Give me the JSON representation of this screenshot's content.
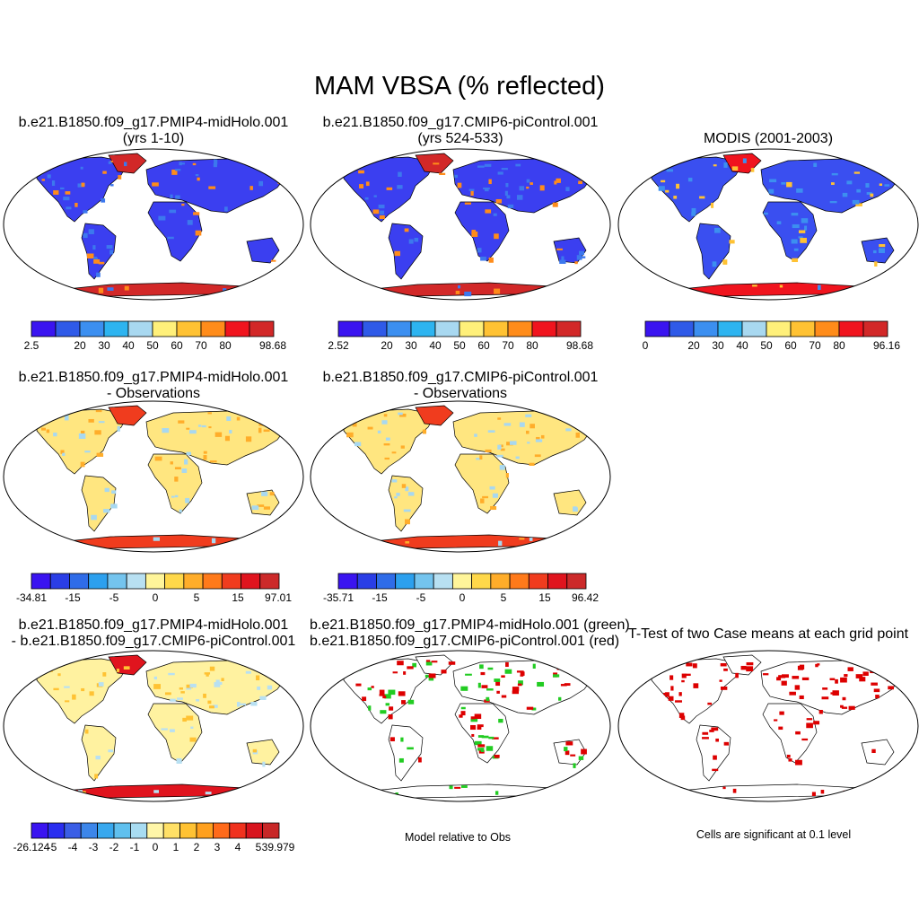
{
  "title": "MAM VBSA (% reflected)",
  "panels": [
    {
      "title1": "b.e21.B1850.f09_g17.PMIP4-midHolo.001",
      "title2": "(yrs 1-10)",
      "style": "abs"
    },
    {
      "title1": "b.e21.B1850.f09_g17.CMIP6-piControl.001",
      "title2": "(yrs 524-533)",
      "style": "abs"
    },
    {
      "title1": "MODIS (2001-2003)",
      "title2": "",
      "style": "obs"
    },
    {
      "title1": "b.e21.B1850.f09_g17.PMIP4-midHolo.001",
      "title2": "- Observations",
      "style": "diff"
    },
    {
      "title1": "b.e21.B1850.f09_g17.CMIP6-piControl.001",
      "title2": "- Observations",
      "style": "diff"
    },
    {
      "title1": "b.e21.B1850.f09_g17.PMIP4-midHolo.001",
      "title2": "- b.e21.B1850.f09_g17.CMIP6-piControl.001",
      "style": "mdiff"
    },
    {
      "title1": "b.e21.B1850.f09_g17.PMIP4-midHolo.001 (green)",
      "title2": "b.e21.B1850.f09_g17.CMIP6-piControl.001 (red)",
      "style": "gr"
    },
    {
      "title1": "T-Test of two Case means at each grid point",
      "title2": "",
      "style": "sig"
    }
  ],
  "colorbars": [
    {
      "colors": [
        "#3a14f0",
        "#2f5ae8",
        "#3c8ff0",
        "#2db4f0",
        "#a8d8f0",
        "#fff07a",
        "#ffc233",
        "#ff8c1a",
        "#f0141e",
        "#d22828"
      ],
      "labels": [
        "2.5",
        "20",
        "30",
        "40",
        "50",
        "60",
        "70",
        "80",
        "98.68"
      ]
    },
    {
      "colors": [
        "#3a14f0",
        "#2f5ae8",
        "#3c8ff0",
        "#2db4f0",
        "#a8d8f0",
        "#fff07a",
        "#ffc233",
        "#ff8c1a",
        "#f0141e",
        "#d22828"
      ],
      "labels": [
        "2.52",
        "20",
        "30",
        "40",
        "50",
        "60",
        "70",
        "80",
        "98.68"
      ]
    },
    {
      "colors": [
        "#3a14f0",
        "#2f5ae8",
        "#3c8ff0",
        "#2db4f0",
        "#a8d8f0",
        "#fff07a",
        "#ffc233",
        "#ff8c1a",
        "#f0141e",
        "#d22828"
      ],
      "labels": [
        "0",
        "20",
        "30",
        "40",
        "50",
        "60",
        "70",
        "80",
        "96.16"
      ]
    },
    {
      "colors": [
        "#3a14f0",
        "#2a3ee6",
        "#2f6ce8",
        "#2ca0ee",
        "#74c4ee",
        "#b8e0f2",
        "#fff59a",
        "#ffd84a",
        "#ffad2a",
        "#ff7a1a",
        "#f03c1e",
        "#e0141e",
        "#cc2a2a"
      ],
      "labels": [
        "-34.81",
        "-15",
        "-5",
        "0",
        "5",
        "15",
        "97.01"
      ]
    },
    {
      "colors": [
        "#3a14f0",
        "#2a3ee6",
        "#2f6ce8",
        "#2ca0ee",
        "#74c4ee",
        "#b8e0f2",
        "#fff59a",
        "#ffd84a",
        "#ffad2a",
        "#ff7a1a",
        "#f03c1e",
        "#e0141e",
        "#cc2a2a"
      ],
      "labels": [
        "-35.71",
        "-15",
        "-5",
        "0",
        "5",
        "15",
        "96.42"
      ]
    },
    {
      "colors": [
        "#3a14f0",
        "#2a2ef0",
        "#3a5ee6",
        "#3c86ea",
        "#38a8ee",
        "#60c0ee",
        "#a8dcf2",
        "#fff6a8",
        "#ffe066",
        "#ffc233",
        "#ffa01e",
        "#ff6a1a",
        "#f0321e",
        "#d8141e",
        "#c82828"
      ],
      "labels": [
        "-26.124",
        "-5",
        "-4",
        "-3",
        "-2",
        "-1",
        "0",
        "1",
        "2",
        "3",
        "4",
        "5",
        "39.979"
      ]
    }
  ],
  "notes": {
    "model_obs": "Model relative to Obs",
    "signif": "Cells are significant at 0.1 level"
  }
}
